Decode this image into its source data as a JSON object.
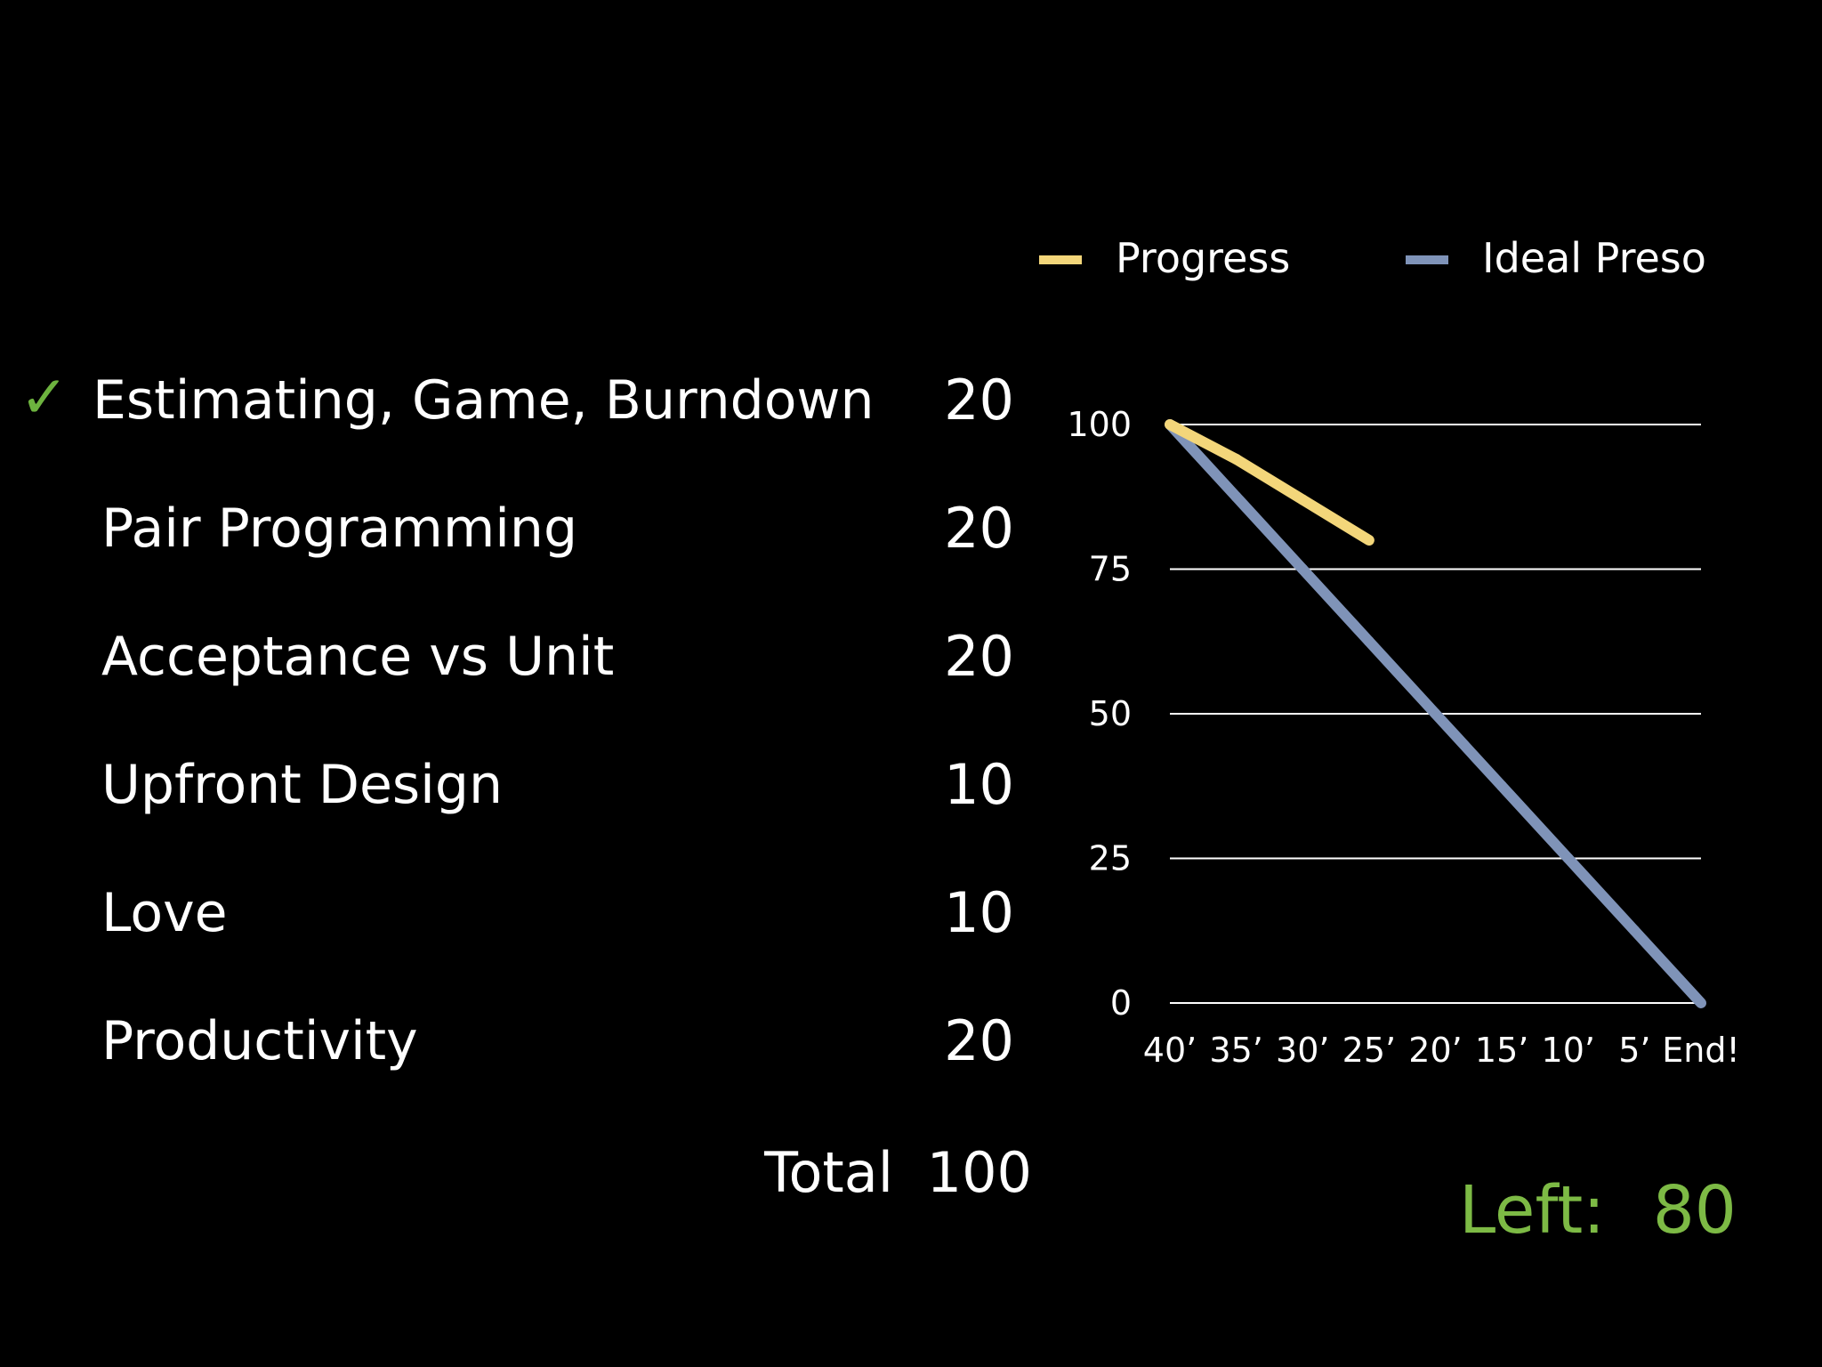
{
  "slide": {
    "topics": [
      {
        "label": "Estimating, Game, Burndown",
        "points": "20",
        "done": true
      },
      {
        "label": "Pair Programming",
        "points": "20",
        "done": false
      },
      {
        "label": "Acceptance vs Unit",
        "points": "20",
        "done": false
      },
      {
        "label": "Upfront Design",
        "points": "10",
        "done": false
      },
      {
        "label": "Love",
        "points": "10",
        "done": false
      },
      {
        "label": "Productivity",
        "points": "20",
        "done": false
      }
    ],
    "check_icon": "✓",
    "total_label": "Total",
    "total_value": "100",
    "left_label": "Left:",
    "left_value": "80"
  },
  "colors": {
    "background": "#000000",
    "text": "#ffffff",
    "check": "#6db33f",
    "left_counter": "#7dba45",
    "progress": "#f3d67a",
    "ideal": "#7f93b8",
    "grid": "#ffffff"
  },
  "chart_data": {
    "type": "line",
    "title": "",
    "xlabel": "",
    "ylabel": "",
    "categories": [
      "40’",
      "35’",
      "30’",
      "25’",
      "20’",
      "15’",
      "10’",
      "5’",
      "End!"
    ],
    "ylim": [
      0,
      100
    ],
    "yticks": [
      0,
      25,
      50,
      75,
      100
    ],
    "grid": true,
    "legend_position": "top",
    "series": [
      {
        "name": "Progress",
        "color": "#f3d67a",
        "values": [
          100,
          94,
          87,
          80,
          null,
          null,
          null,
          null,
          null
        ]
      },
      {
        "name": "Ideal Preso",
        "color": "#7f93b8",
        "values": [
          100,
          87.5,
          75,
          62.5,
          50,
          37.5,
          25,
          12.5,
          0
        ]
      }
    ]
  }
}
